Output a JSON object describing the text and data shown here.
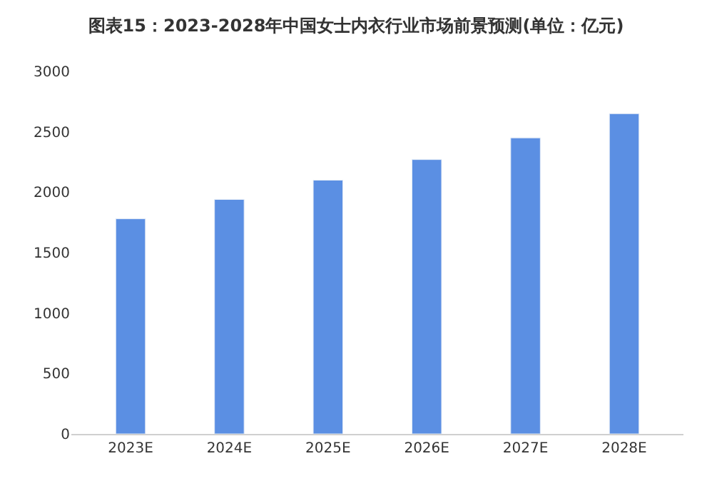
{
  "chart_data": {
    "type": "bar",
    "title": "图表15：2023-2028年中国女士内衣行业市场前景预测(单位：亿元)",
    "categories": [
      "2023E",
      "2024E",
      "2025E",
      "2026E",
      "2027E",
      "2028E"
    ],
    "values": [
      1780,
      1940,
      2100,
      2270,
      2450,
      2650
    ],
    "color": "#5b8fe3",
    "ylim": [
      0,
      3000
    ],
    "yticks": [
      0,
      500,
      1000,
      1500,
      2000,
      2500,
      3000
    ],
    "grid": false
  }
}
